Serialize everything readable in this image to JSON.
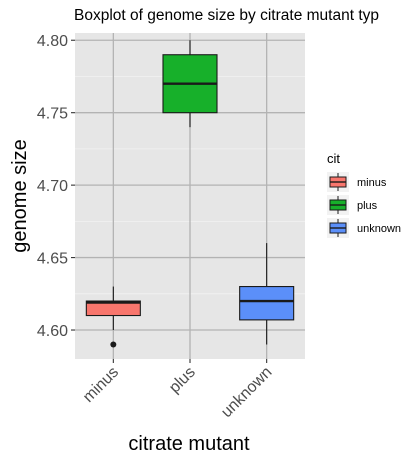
{
  "chart_data": {
    "type": "boxplot",
    "title": "Boxplot of genome size by citrate mutant typ",
    "xlabel": "citrate mutant",
    "ylabel": "genome size",
    "categories": [
      "minus",
      "plus",
      "unknown"
    ],
    "ylim": [
      4.58,
      4.805
    ],
    "yticks": [
      4.6,
      4.65,
      4.7,
      4.75,
      4.8
    ],
    "ytick_labels": [
      "4.60",
      "4.65",
      "4.70",
      "4.75",
      "4.80"
    ],
    "grid": true,
    "legend": {
      "title": "cit",
      "position": "right",
      "entries": [
        {
          "label": "minus",
          "color": "#F8766D"
        },
        {
          "label": "plus",
          "color": "#17B02A"
        },
        {
          "label": "unknown",
          "color": "#5B8FF9"
        }
      ]
    },
    "boxes": [
      {
        "category": "minus",
        "color": "#F8766D",
        "whisker_low": 4.6,
        "q1": 4.61,
        "median": 4.619,
        "q3": 4.62,
        "whisker_high": 4.63,
        "outliers": [
          4.59
        ]
      },
      {
        "category": "plus",
        "color": "#17B02A",
        "whisker_low": 4.74,
        "q1": 4.75,
        "median": 4.77,
        "q3": 4.79,
        "whisker_high": 4.8,
        "outliers": []
      },
      {
        "category": "unknown",
        "color": "#5B8FF9",
        "whisker_low": 4.59,
        "q1": 4.607,
        "median": 4.62,
        "q3": 4.63,
        "whisker_high": 4.66,
        "outliers": []
      }
    ]
  }
}
